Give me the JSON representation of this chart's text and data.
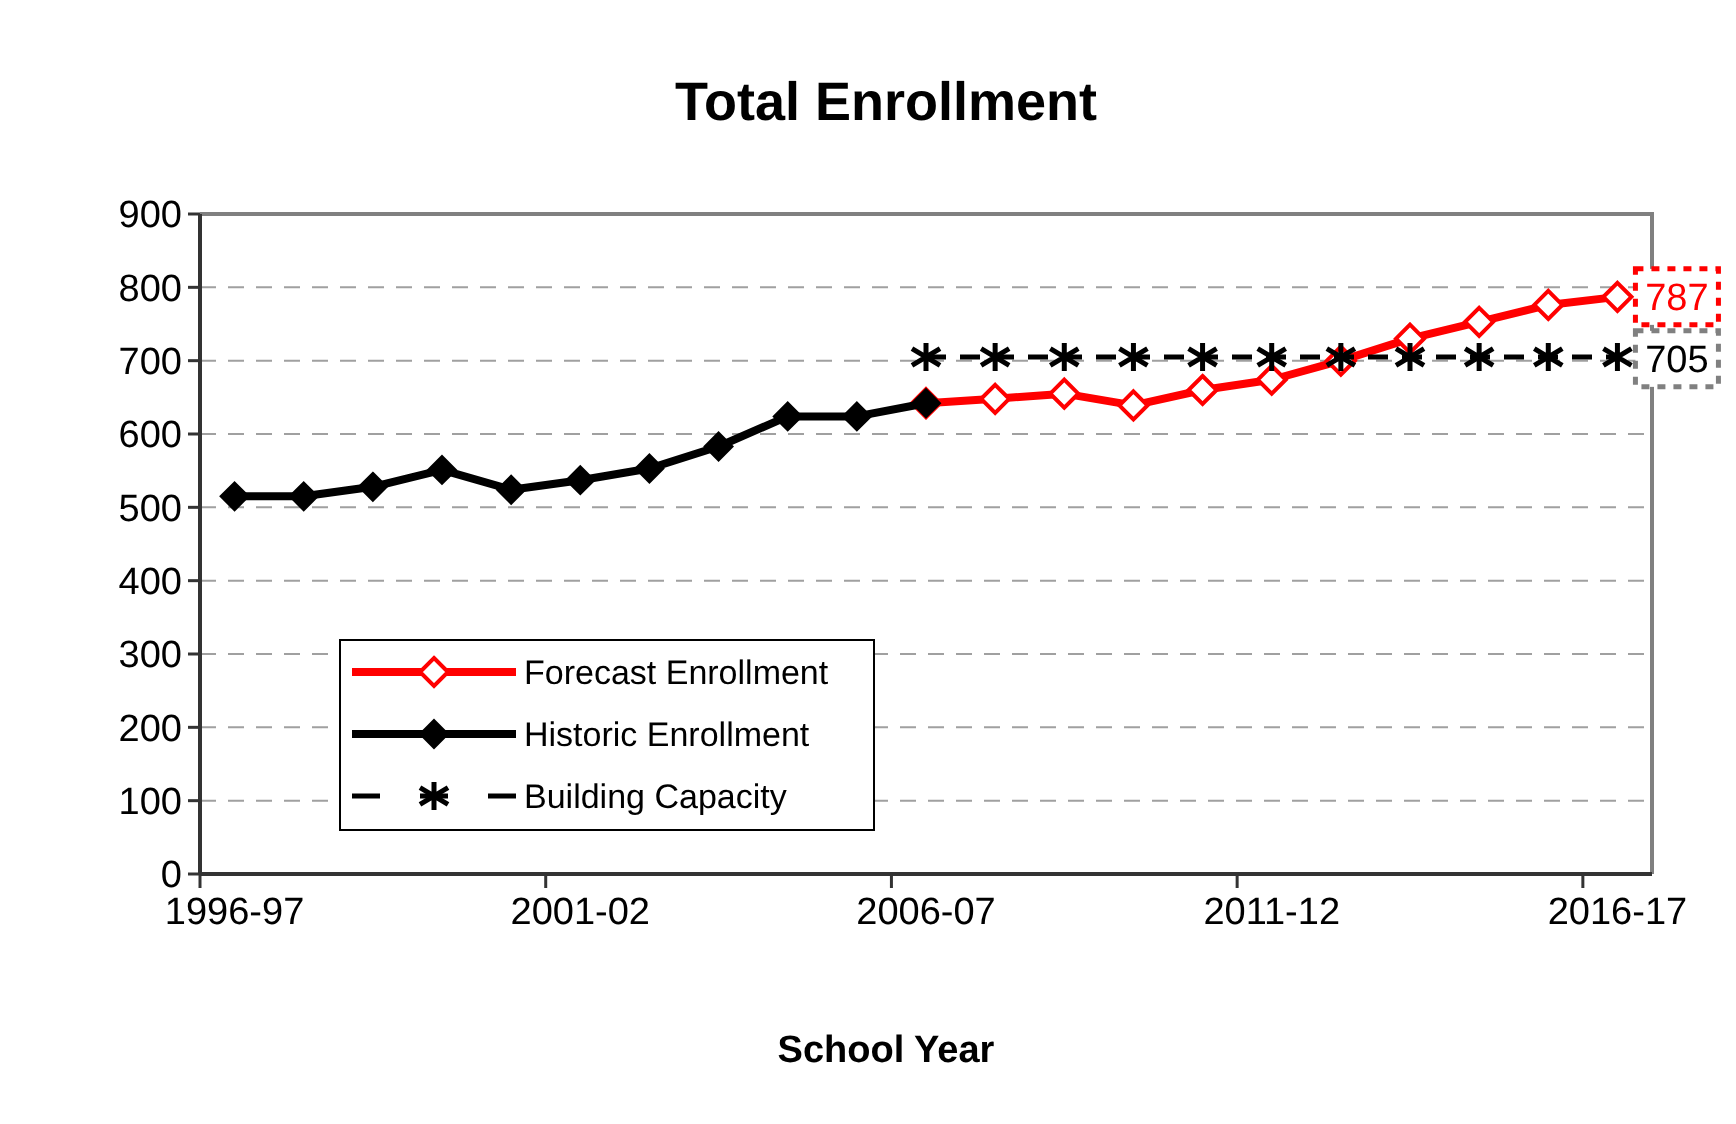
{
  "chart_data": {
    "type": "line",
    "title": "Total Enrollment",
    "xlabel": "School Year",
    "categories": [
      "1996-97",
      null,
      null,
      null,
      null,
      "2001-02",
      null,
      null,
      null,
      null,
      "2006-07",
      null,
      null,
      null,
      null,
      "2011-12",
      null,
      null,
      null,
      null,
      "2016-17"
    ],
    "series": [
      {
        "name": "Forecast Enrollment",
        "color": "#ff0000",
        "marker": "diamond",
        "values": [
          null,
          null,
          null,
          null,
          null,
          null,
          null,
          null,
          null,
          null,
          642,
          648,
          655,
          639,
          660,
          674,
          700,
          730,
          753,
          776,
          787
        ],
        "value_labels": [
          null,
          null,
          null,
          null,
          null,
          null,
          null,
          null,
          null,
          null,
          null,
          null,
          null,
          null,
          null,
          null,
          null,
          null,
          null,
          null,
          "787"
        ]
      },
      {
        "name": "Historic Enrollment",
        "color": "#000000",
        "marker": "diamond",
        "values": [
          515,
          515,
          528,
          551,
          524,
          537,
          553,
          583,
          624,
          624,
          642,
          null,
          null,
          null,
          null,
          null,
          null,
          null,
          null,
          null,
          null
        ]
      },
      {
        "name": "Building Capacity",
        "color": "#000000",
        "marker": "cross",
        "line_style": "dashed",
        "values": [
          null,
          null,
          null,
          null,
          null,
          null,
          null,
          null,
          null,
          null,
          705,
          705,
          705,
          705,
          705,
          705,
          705,
          705,
          705,
          705,
          705
        ],
        "value_labels": [
          null,
          null,
          null,
          null,
          null,
          null,
          null,
          null,
          null,
          null,
          null,
          null,
          null,
          null,
          null,
          null,
          null,
          null,
          null,
          null,
          "705"
        ]
      }
    ],
    "ylim": [
      0,
      900
    ],
    "yticks": [
      0,
      100,
      200,
      300,
      400,
      500,
      600,
      700,
      800,
      900
    ],
    "grid": "y",
    "legend": "bottom left"
  }
}
